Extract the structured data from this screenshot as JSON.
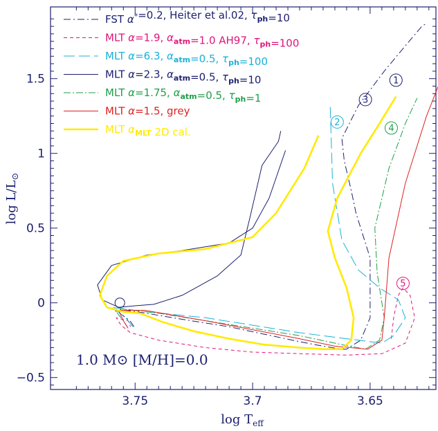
{
  "chart_data": {
    "type": "line",
    "title": "",
    "xlabel": "log T",
    "xlabel_sub": "eff",
    "ylabel": "log L/L",
    "ylabel_sub": "⊙",
    "xlim": [
      3.786,
      3.622
    ],
    "ylim": [
      -0.58,
      1.98
    ],
    "x_ticks": [
      3.75,
      3.7,
      3.65
    ],
    "x_tick_labels": [
      "3.75",
      "3.7",
      "3.65"
    ],
    "y_ticks": [
      -0.5,
      0,
      0.5,
      1,
      1.5
    ],
    "y_tick_labels": [
      "−0.5",
      "0",
      "0.5",
      "1",
      "1.5"
    ],
    "grid": false,
    "legend_position": "top-left",
    "annotation": "1.0 M⊙ [M/H]=0.0",
    "markers": [
      "1",
      "2",
      "3",
      "4",
      "5"
    ],
    "series": [
      {
        "name": "FST α*=0.2, Heiter et al.02, τph=10",
        "legend": {
          "main": "FST ",
          "parts": [
            [
              "α",
              "*"
            ],
            [
              "=0.2, Heiter et al.02, ",
              ""
            ],
            [
              "τ",
              "ph"
            ],
            [
              "=10",
              ""
            ]
          ]
        },
        "color": "#1b1f6e",
        "dash": "10 4 2 4",
        "width": 1,
        "x": [
          3.7505,
          3.7522,
          3.7565,
          3.76,
          3.749,
          3.73,
          3.71,
          3.695,
          3.68,
          3.67,
          3.662,
          3.66,
          3.654,
          3.65,
          3.65,
          3.656,
          3.658,
          3.661,
          3.662,
          3.655,
          3.644,
          3.635,
          3.628,
          3.626
        ],
        "y": [
          -0.16,
          -0.12,
          -0.07,
          -0.04,
          -0.06,
          -0.11,
          -0.16,
          -0.21,
          -0.26,
          -0.29,
          -0.31,
          -0.31,
          -0.25,
          -0.1,
          0.3,
          0.6,
          0.75,
          0.95,
          1.1,
          1.32,
          1.55,
          1.72,
          1.85,
          1.87
        ]
      },
      {
        "name": "MLT α=1.9, αatm=1.0 AH97, τph=100",
        "legend": {
          "main": "MLT ",
          "parts": [
            [
              "α",
              ""
            ],
            [
              "=1.9, ",
              ""
            ],
            [
              "α",
              "atm"
            ],
            [
              "=1.0 AH97, ",
              ""
            ],
            [
              "τ",
              "ph"
            ],
            [
              "=100",
              ""
            ]
          ]
        },
        "color": "#e0147a",
        "dash": "5 4",
        "width": 1,
        "x": [
          3.641,
          3.64,
          3.638,
          3.636,
          3.633,
          3.631,
          3.635,
          3.645,
          3.66,
          3.68,
          3.7,
          3.72,
          3.74,
          3.752,
          3.756,
          3.758,
          3.753,
          3.752
        ],
        "y": [
          -0.24,
          -0.1,
          0.05,
          0.1,
          0.05,
          -0.1,
          -0.27,
          -0.34,
          -0.35,
          -0.34,
          -0.33,
          -0.3,
          -0.25,
          -0.2,
          -0.15,
          -0.1,
          -0.12,
          -0.16
        ]
      },
      {
        "name": "MLT α=6.3, αatm=0.5, τph=100",
        "legend": {
          "main": "MLT ",
          "parts": [
            [
              "α",
              ""
            ],
            [
              "=6.3, ",
              ""
            ],
            [
              "α",
              "atm"
            ],
            [
              "=0.5, ",
              ""
            ],
            [
              "τ",
              "ph"
            ],
            [
              "=100",
              ""
            ]
          ]
        },
        "color": "#1ab0d8",
        "dash": "16 6",
        "width": 1,
        "x": [
          3.751,
          3.754,
          3.758,
          3.76,
          3.745,
          3.72,
          3.7,
          3.68,
          3.66,
          3.645,
          3.64,
          3.635,
          3.638,
          3.646,
          3.655,
          3.662,
          3.666,
          3.667
        ],
        "y": [
          -0.16,
          -0.1,
          -0.05,
          -0.03,
          -0.06,
          -0.1,
          -0.15,
          -0.2,
          -0.24,
          -0.27,
          -0.22,
          -0.1,
          0.02,
          0.1,
          0.22,
          0.42,
          0.8,
          1.32
        ]
      },
      {
        "name": "MLT α=2.3, αatm=0.5, τph=10",
        "legend": {
          "main": "MLT ",
          "parts": [
            [
              "α",
              ""
            ],
            [
              "=2.3, ",
              ""
            ],
            [
              "α",
              "atm"
            ],
            [
              "=0.5, ",
              ""
            ],
            [
              "τ",
              "ph"
            ],
            [
              "=10",
              ""
            ]
          ]
        },
        "color": "#1b1f6e",
        "dash": "",
        "width": 1,
        "x": [
          3.686,
          3.693,
          3.7,
          3.71,
          3.73,
          3.745,
          3.76,
          3.766,
          3.764,
          3.757,
          3.75,
          3.742,
          3.73,
          3.715,
          3.705,
          3.701,
          3.696,
          3.689,
          3.688
        ],
        "y": [
          1.02,
          0.7,
          0.5,
          0.4,
          0.35,
          0.32,
          0.25,
          0.12,
          0.02,
          -0.03,
          -0.02,
          -0.01,
          0.05,
          0.18,
          0.32,
          0.58,
          0.92,
          1.08,
          1.15
        ]
      },
      {
        "name": "MLT α=1.75, αatm=0.5, τph=1",
        "legend": {
          "main": "MLT ",
          "parts": [
            [
              "α",
              ""
            ],
            [
              "=1.75, ",
              ""
            ],
            [
              "α",
              "atm"
            ],
            [
              "=0.5, ",
              ""
            ],
            [
              "τ",
              "ph"
            ],
            [
              "=1",
              ""
            ]
          ]
        },
        "color": "#1e9e4a",
        "dash": "10 3 2 3",
        "width": 1,
        "x": [
          3.753,
          3.755,
          3.758,
          3.756,
          3.74,
          3.72,
          3.7,
          3.68,
          3.662,
          3.652,
          3.646,
          3.644,
          3.647,
          3.648,
          3.642,
          3.635,
          3.63
        ],
        "y": [
          -0.17,
          -0.12,
          -0.06,
          -0.04,
          -0.07,
          -0.12,
          -0.17,
          -0.22,
          -0.28,
          -0.31,
          -0.25,
          -0.1,
          0.2,
          0.5,
          0.9,
          1.2,
          1.37
        ]
      },
      {
        "name": "MLT α=1.5, grey",
        "legend": {
          "main": "MLT ",
          "parts": [
            [
              "α",
              ""
            ],
            [
              "=1.5, grey",
              ""
            ]
          ]
        },
        "color": "#e02020",
        "dash": "",
        "width": 1,
        "x": [
          3.753,
          3.755,
          3.757,
          3.746,
          3.72,
          3.7,
          3.68,
          3.665,
          3.651,
          3.645,
          3.644,
          3.642,
          3.635,
          3.626,
          3.621
        ],
        "y": [
          -0.17,
          -0.12,
          -0.05,
          -0.05,
          -0.12,
          -0.18,
          -0.24,
          -0.29,
          -0.31,
          -0.25,
          -0.1,
          0.3,
          0.8,
          1.25,
          1.45
        ]
      },
      {
        "name": "MLT αMLT 2D cal.",
        "legend": {
          "main": "MLT ",
          "parts": [
            [
              "α",
              "MLT"
            ],
            [
              " 2D cal.",
              ""
            ]
          ]
        },
        "color": "#ffea00",
        "dash": "",
        "width": 2.6,
        "x": [
          3.672,
          3.678,
          3.69,
          3.7,
          3.72,
          3.74,
          3.755,
          3.762,
          3.765,
          3.762,
          3.755,
          3.748,
          3.738,
          3.725,
          3.71,
          3.695,
          3.68,
          3.67,
          3.662,
          3.658,
          3.657,
          3.66,
          3.665,
          3.668,
          3.664,
          3.654,
          3.646,
          3.639
        ],
        "y": [
          1.12,
          0.9,
          0.6,
          0.44,
          0.36,
          0.33,
          0.28,
          0.18,
          0.05,
          -0.03,
          -0.06,
          -0.07,
          -0.13,
          -0.19,
          -0.24,
          -0.28,
          -0.3,
          -0.31,
          -0.31,
          -0.25,
          -0.1,
          0.1,
          0.3,
          0.48,
          0.7,
          1.0,
          1.2,
          1.38
        ]
      }
    ]
  }
}
